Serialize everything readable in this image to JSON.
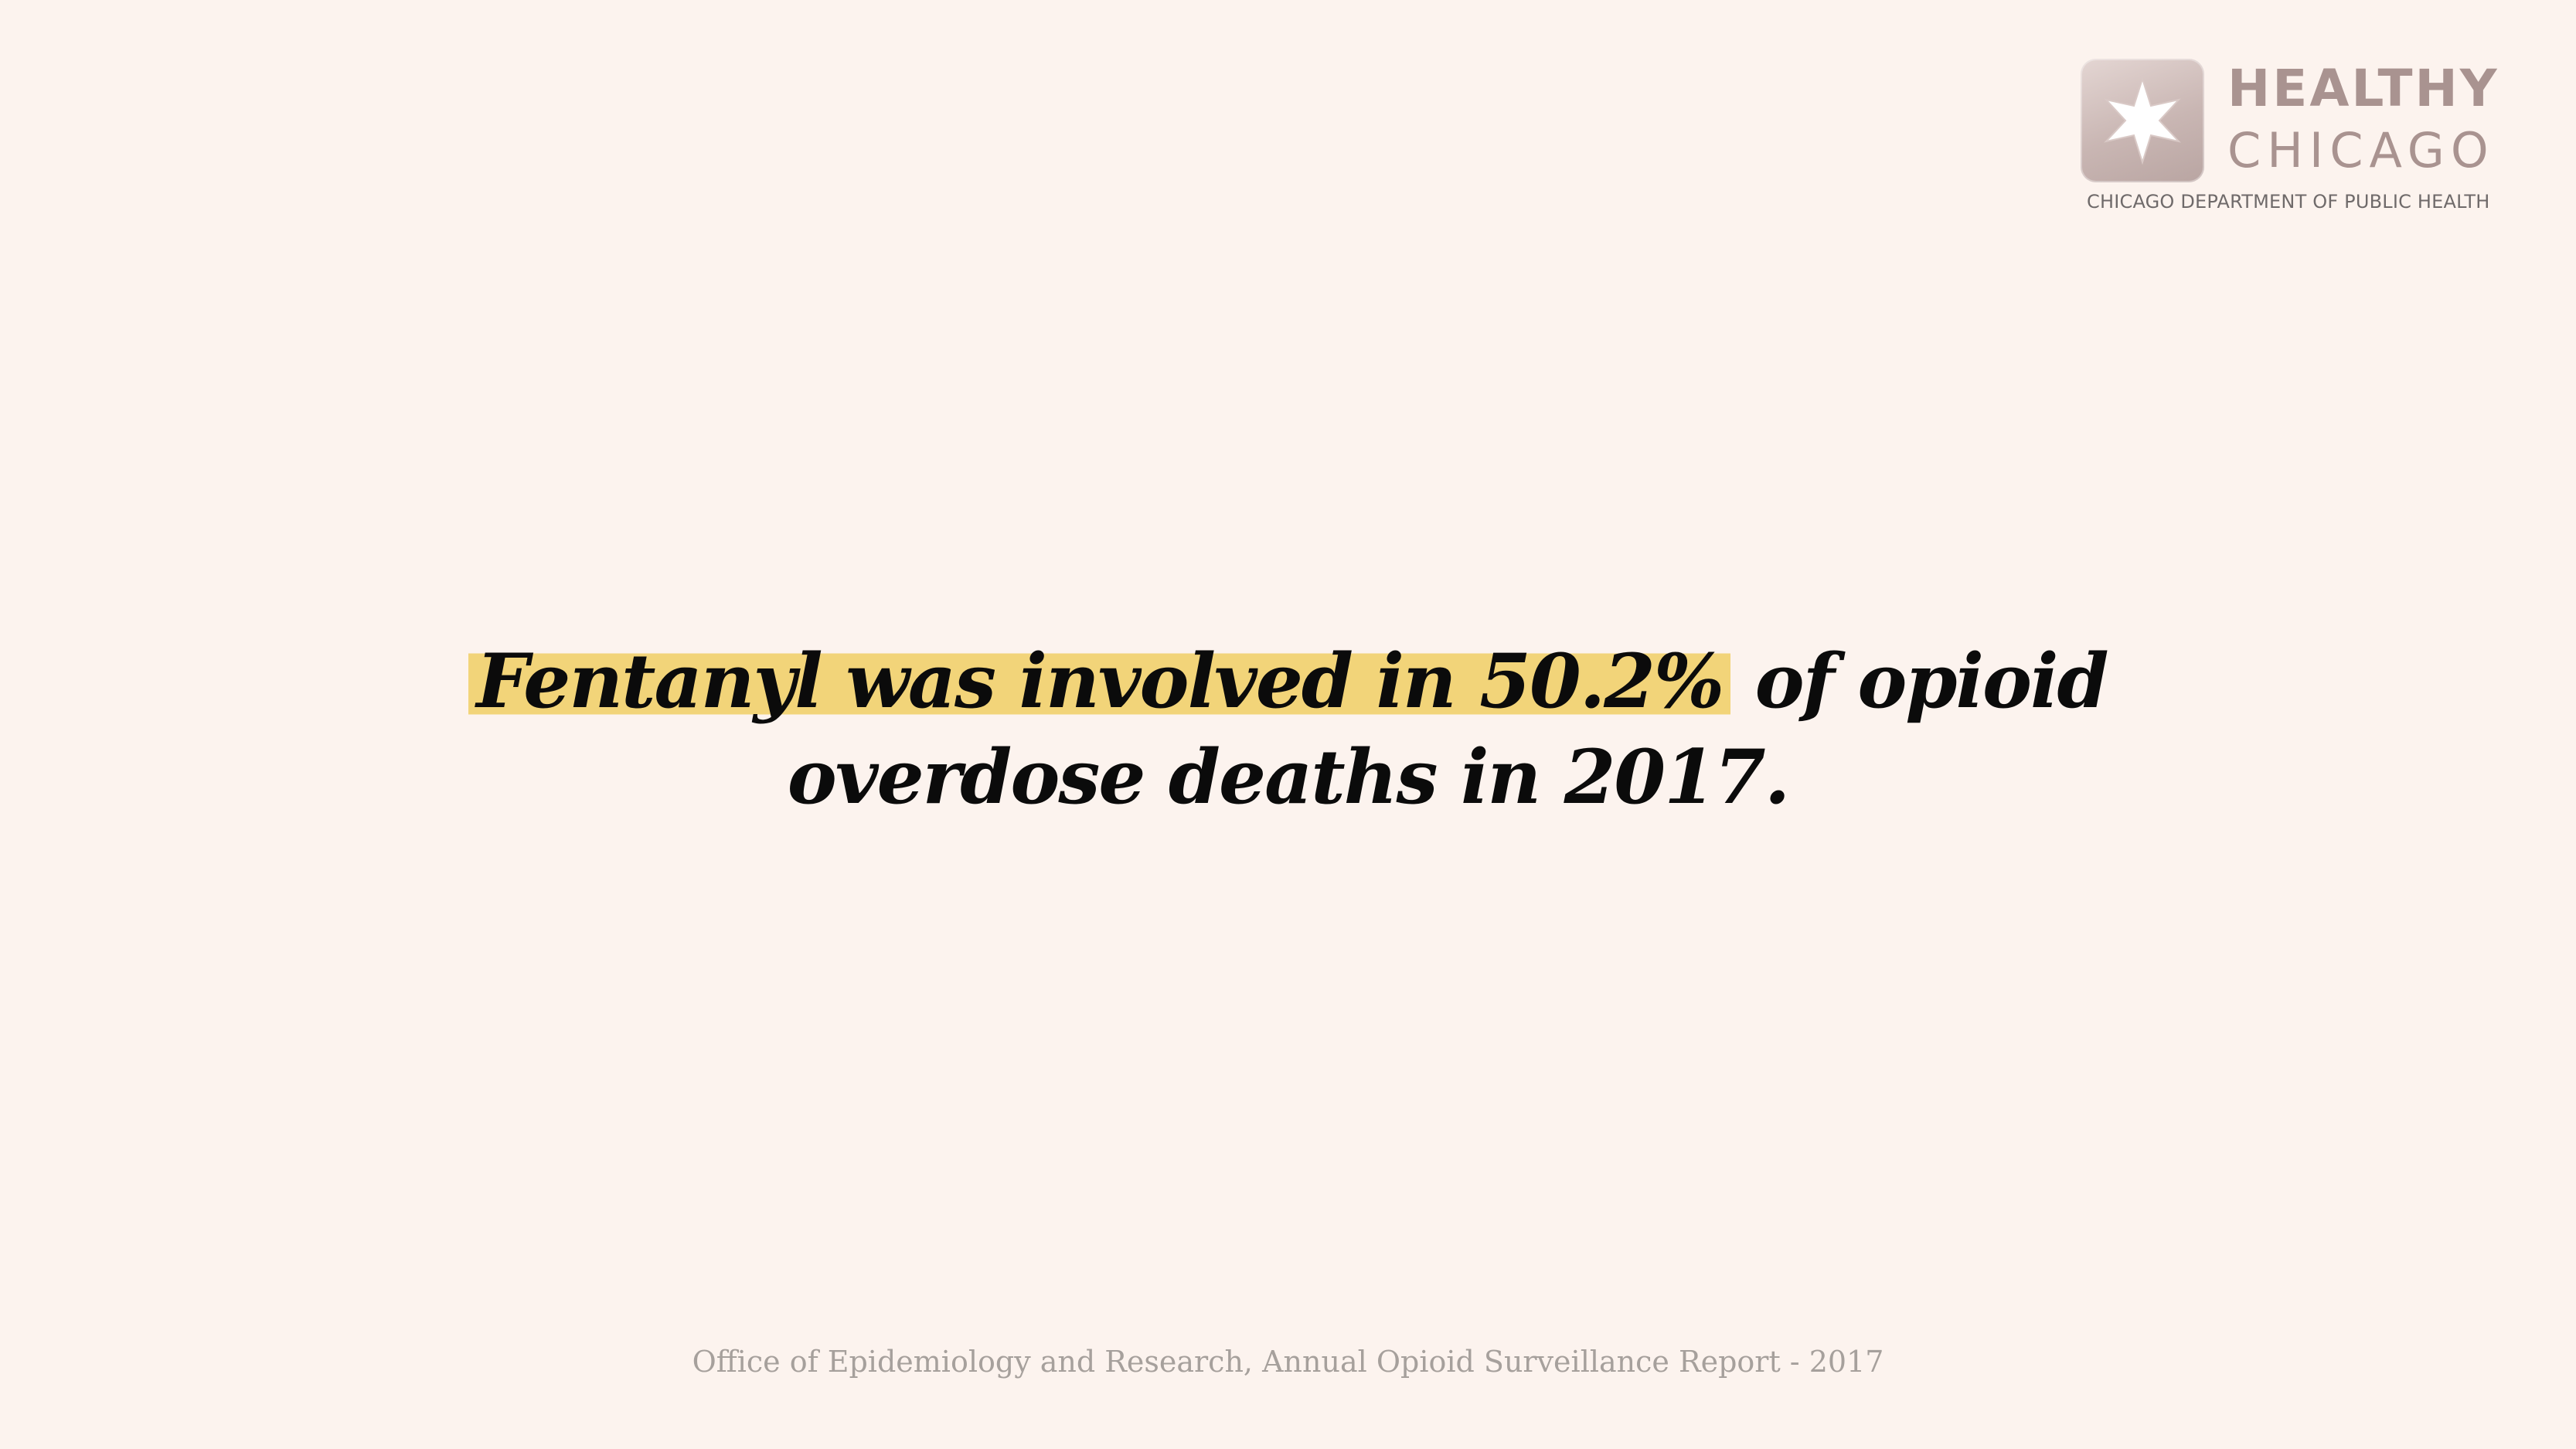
{
  "logo": {
    "line1": "HEALTHY",
    "line2": "CHICAGO",
    "line3": "CHICAGO DEPARTMENT OF PUBLIC HEALTH",
    "icon": "six-pointed-star-icon"
  },
  "headline": {
    "highlighted": "Fentanyl was involved in 50.2%",
    "rest": " of opioid",
    "line2": "overdose deaths in 2017."
  },
  "footer": {
    "source": "Office of Epidemiology and Research, Annual Opioid Surveillance Report - 2017"
  },
  "colors": {
    "background": "#fcf3ee",
    "highlight": "#f2d479",
    "text": "#0b0b0b",
    "logo": "#a99390"
  }
}
